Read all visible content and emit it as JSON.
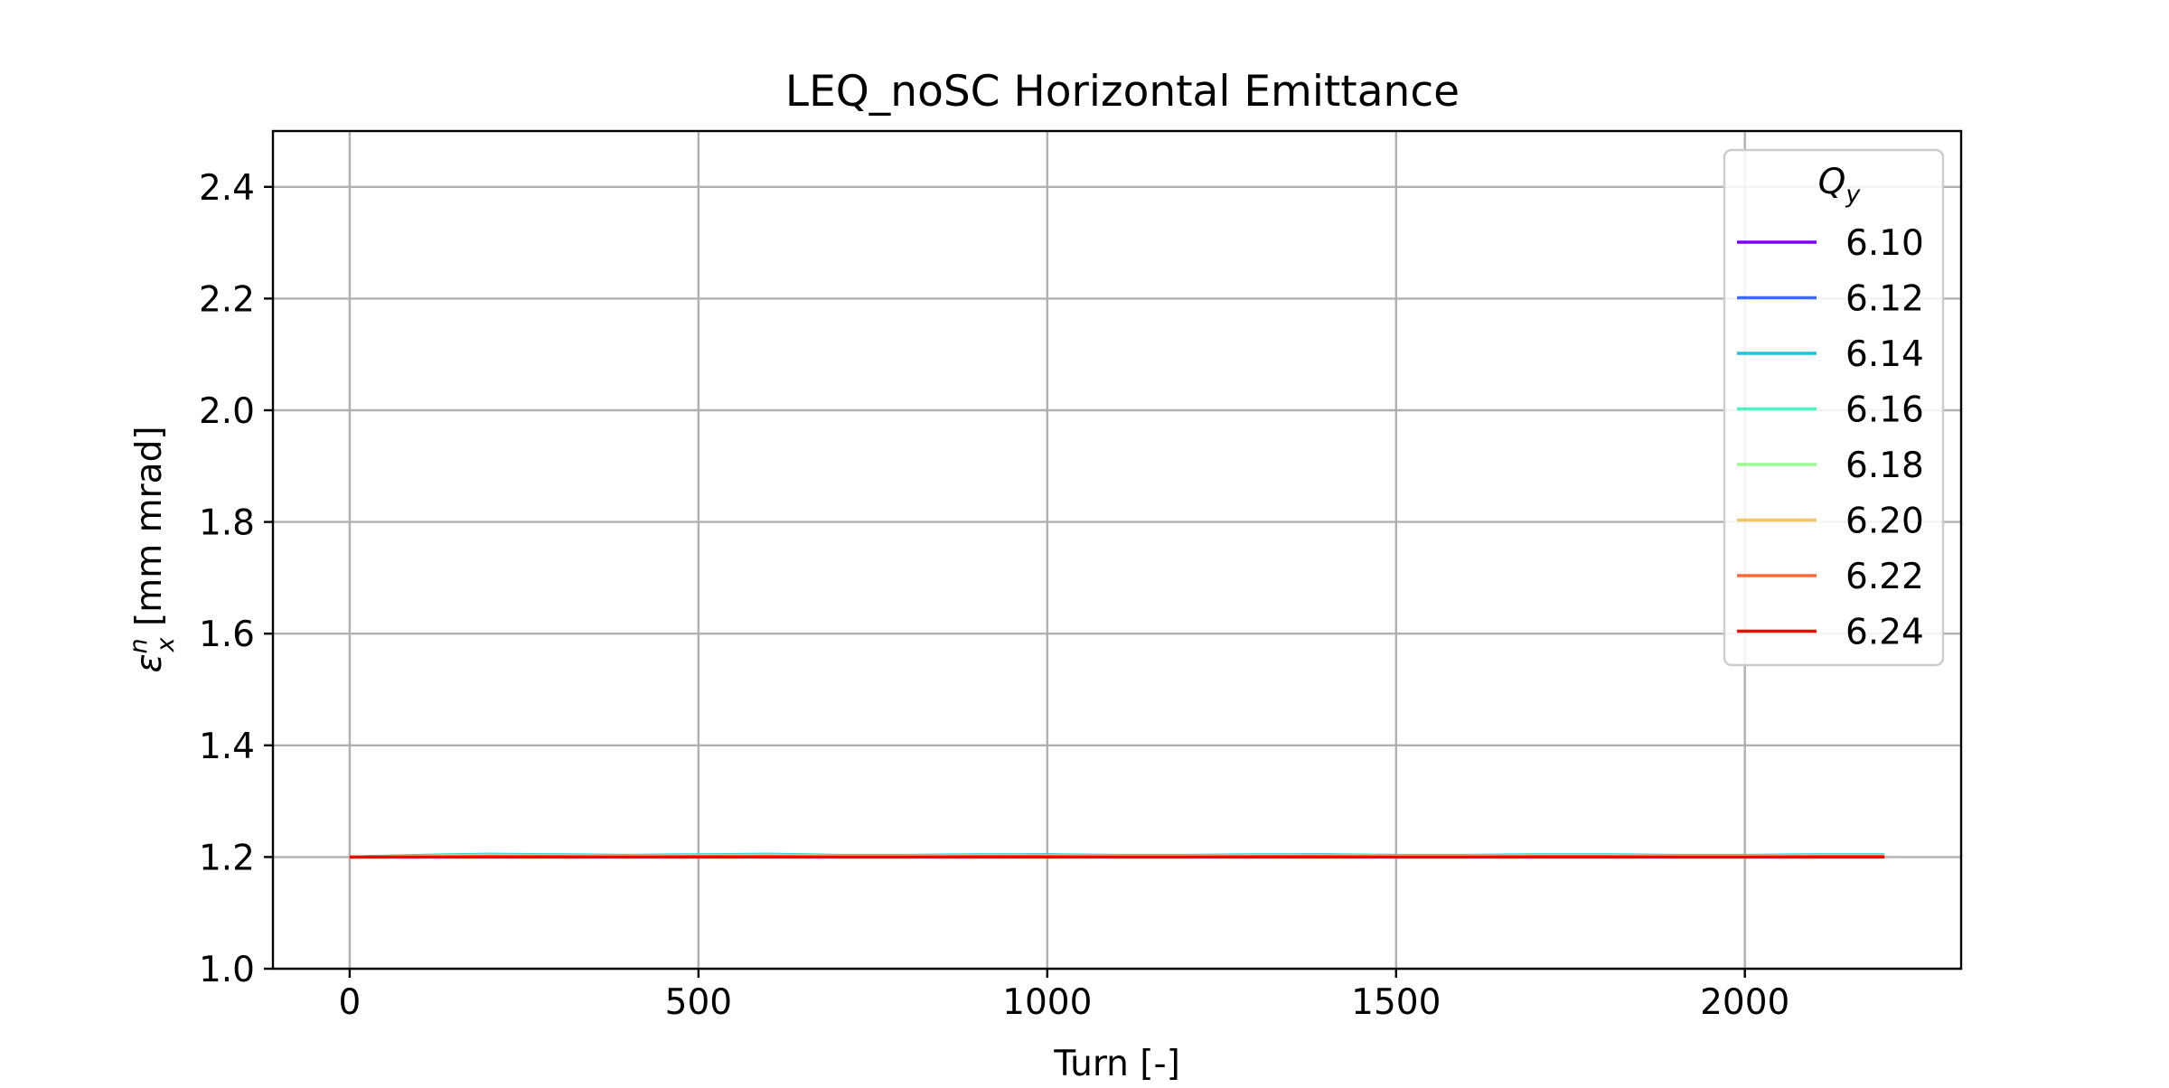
{
  "chart_data": {
    "type": "line",
    "title": "LEQ_noSC Horizontal Emittance",
    "xlabel": "Turn [-]",
    "ylabel_symbol": "ε",
    "ylabel_sub": "x",
    "ylabel_sup": "n",
    "ylabel_units": " [mm mrad]",
    "xlim": [
      -110,
      2310
    ],
    "ylim": [
      1.0,
      2.5
    ],
    "xticks": [
      0,
      500,
      1000,
      1500,
      2000
    ],
    "xtick_labels": [
      "0",
      "500",
      "1000",
      "1500",
      "2000"
    ],
    "yticks": [
      1.0,
      1.2,
      1.4,
      1.6,
      1.8,
      2.0,
      2.2,
      2.4
    ],
    "ytick_labels": [
      "1.0",
      "1.2",
      "1.4",
      "1.6",
      "1.8",
      "2.0",
      "2.2",
      "2.4"
    ],
    "grid": true,
    "legend": {
      "title_symbol": "Q",
      "title_sub": "y",
      "placement": "top-right"
    },
    "x": [
      0,
      100,
      200,
      300,
      400,
      500,
      600,
      700,
      800,
      900,
      1000,
      1100,
      1200,
      1300,
      1400,
      1500,
      1600,
      1700,
      1800,
      1900,
      2000,
      2100,
      2200
    ],
    "series": [
      {
        "name": "6.10",
        "color": "#7f00ff",
        "values": [
          1.2,
          1.202,
          1.203,
          1.202,
          1.202,
          1.203,
          1.203,
          1.202,
          1.202,
          1.203,
          1.203,
          1.202,
          1.202,
          1.203,
          1.203,
          1.202,
          1.202,
          1.203,
          1.203,
          1.202,
          1.202,
          1.202,
          1.202
        ]
      },
      {
        "name": "6.12",
        "color": "#3e6bf5",
        "values": [
          1.2,
          1.202,
          1.204,
          1.203,
          1.202,
          1.203,
          1.204,
          1.202,
          1.202,
          1.203,
          1.204,
          1.202,
          1.202,
          1.203,
          1.204,
          1.202,
          1.202,
          1.203,
          1.203,
          1.202,
          1.202,
          1.203,
          1.203
        ]
      },
      {
        "name": "6.14",
        "color": "#19c4e3",
        "values": [
          1.2,
          1.203,
          1.205,
          1.204,
          1.203,
          1.204,
          1.205,
          1.203,
          1.203,
          1.204,
          1.204,
          1.203,
          1.203,
          1.204,
          1.204,
          1.203,
          1.203,
          1.204,
          1.204,
          1.203,
          1.203,
          1.204,
          1.204
        ]
      },
      {
        "name": "6.16",
        "color": "#4cf2c1",
        "values": [
          1.2,
          1.202,
          1.204,
          1.203,
          1.202,
          1.203,
          1.204,
          1.202,
          1.202,
          1.203,
          1.203,
          1.202,
          1.202,
          1.203,
          1.203,
          1.202,
          1.202,
          1.203,
          1.203,
          1.202,
          1.202,
          1.203,
          1.203
        ]
      },
      {
        "name": "6.18",
        "color": "#9bfa8f",
        "values": [
          1.2,
          1.201,
          1.203,
          1.202,
          1.201,
          1.202,
          1.203,
          1.201,
          1.201,
          1.202,
          1.202,
          1.201,
          1.201,
          1.202,
          1.202,
          1.201,
          1.201,
          1.202,
          1.202,
          1.201,
          1.201,
          1.202,
          1.202
        ]
      },
      {
        "name": "6.20",
        "color": "#f5c55f",
        "values": [
          1.2,
          1.201,
          1.202,
          1.201,
          1.201,
          1.201,
          1.202,
          1.201,
          1.201,
          1.201,
          1.202,
          1.201,
          1.201,
          1.201,
          1.202,
          1.201,
          1.201,
          1.201,
          1.201,
          1.201,
          1.201,
          1.201,
          1.201
        ]
      },
      {
        "name": "6.22",
        "color": "#ff6a35",
        "values": [
          1.2,
          1.2,
          1.201,
          1.201,
          1.2,
          1.201,
          1.201,
          1.2,
          1.2,
          1.201,
          1.201,
          1.2,
          1.2,
          1.201,
          1.201,
          1.2,
          1.2,
          1.201,
          1.201,
          1.2,
          1.2,
          1.201,
          1.201
        ]
      },
      {
        "name": "6.24",
        "color": "#ff0000",
        "values": [
          1.2,
          1.2,
          1.2,
          1.2,
          1.2,
          1.2,
          1.2,
          1.2,
          1.2,
          1.2,
          1.2,
          1.2,
          1.2,
          1.2,
          1.2,
          1.2,
          1.2,
          1.2,
          1.2,
          1.2,
          1.2,
          1.2,
          1.2
        ]
      }
    ]
  }
}
